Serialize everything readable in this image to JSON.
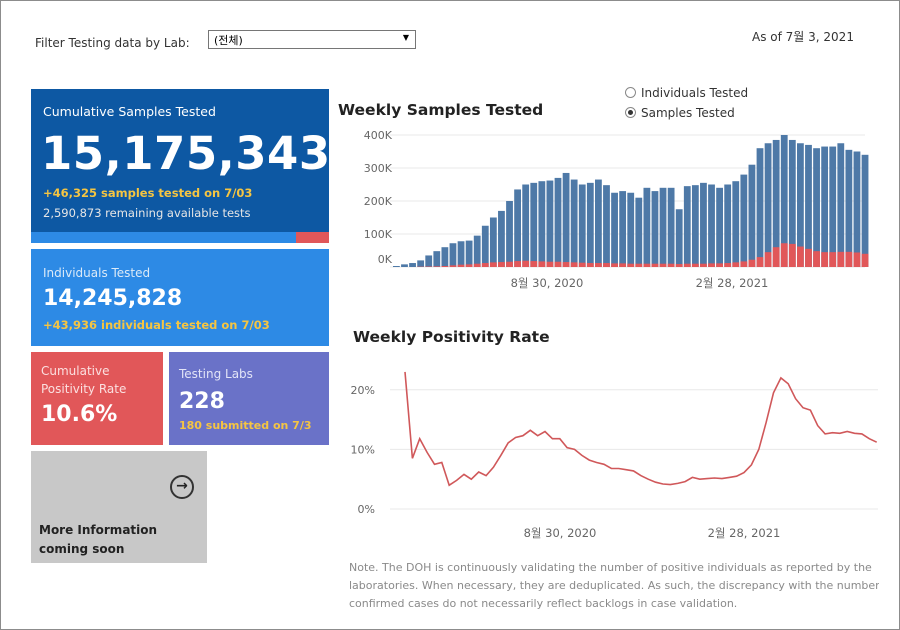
{
  "filter": {
    "label": "Filter Testing data by Lab:",
    "selected": "(전체)",
    "caret": "▼"
  },
  "as_of": "As of 7월 3, 2021",
  "cumulative_samples": {
    "title": "Cumulative Samples Tested",
    "value": "15,175,343",
    "delta": "+46,325 samples tested on 7/03",
    "remaining": "2,590,873 remaining available tests",
    "progress_fraction": 0.89
  },
  "individuals": {
    "title": "Individuals Tested",
    "value": "14,245,828",
    "delta": "+43,936  individuals  tested on 7/03"
  },
  "positivity": {
    "title": "Cumulative Positivity Rate",
    "value": "10.6%"
  },
  "labs": {
    "title": "Testing Labs",
    "value": "228",
    "submitted": "180 submitted on 7/3"
  },
  "more_info": {
    "text": "More Information coming soon",
    "icon": "arrow-circle-right-icon",
    "glyph": "→"
  },
  "radio": {
    "opt1": "Individuals Tested",
    "opt2": "Samples Tested",
    "selected": "Samples Tested"
  },
  "colors": {
    "blue_dark": "#0d58a3",
    "blue": "#2d8ae5",
    "red": "#e15759",
    "purple": "#6a72c8",
    "bar_blue": "#4e79a7"
  },
  "chart_data": [
    {
      "type": "bar",
      "title": "Weekly Samples Tested",
      "x_tick_labels": [
        "8월 30, 2020",
        "2월 28, 2021"
      ],
      "y_tick_labels": [
        "0K",
        "100K",
        "200K",
        "300K",
        "400K"
      ],
      "ylim": [
        0,
        400000
      ],
      "series": [
        {
          "name": "",
          "values": [
            3000,
            8000,
            12000,
            20000,
            35000,
            48000,
            60000,
            72000,
            78000,
            80000,
            95000,
            125000,
            150000,
            170000,
            200000,
            235000,
            250000,
            255000,
            260000,
            262000,
            270000,
            285000,
            265000,
            250000,
            255000,
            265000,
            248000,
            225000,
            230000,
            225000,
            210000,
            240000,
            230000,
            240000,
            240000,
            175000,
            245000,
            248000,
            255000,
            250000,
            240000,
            250000,
            260000,
            280000,
            310000,
            360000,
            375000,
            385000,
            400000,
            385000,
            375000,
            370000,
            360000,
            365000,
            365000,
            375000,
            355000,
            350000,
            340000
          ]
        },
        {
          "name": "",
          "values": [
            0,
            0,
            0,
            1000,
            1500,
            2000,
            3000,
            5000,
            7000,
            8000,
            10000,
            12000,
            14000,
            15000,
            16000,
            18000,
            19000,
            18000,
            17000,
            16000,
            16000,
            15000,
            14000,
            13000,
            12000,
            12000,
            12000,
            11000,
            11000,
            10000,
            10000,
            10000,
            10000,
            10000,
            10000,
            9000,
            10000,
            10000,
            10000,
            11000,
            11000,
            12000,
            14000,
            17000,
            22000,
            30000,
            45000,
            60000,
            72000,
            70000,
            62000,
            55000,
            48000,
            45000,
            45000,
            46000,
            46000,
            44000,
            40000
          ]
        }
      ]
    },
    {
      "type": "line",
      "title": "Weekly Positivity Rate",
      "x_tick_labels": [
        "8월 30, 2020",
        "2월 28, 2021"
      ],
      "y_tick_labels": [
        "0%",
        "10%",
        "20%"
      ],
      "ylim": [
        0,
        25
      ],
      "series": [
        {
          "name": "",
          "values": [
            23,
            8.5,
            11.8,
            9.5,
            7.5,
            7.8,
            4,
            4.8,
            5.8,
            5,
            6.2,
            5.6,
            7,
            9,
            11.1,
            12,
            12.3,
            13.2,
            12.3,
            13,
            11.8,
            11.8,
            10.3,
            10,
            9,
            8.2,
            7.8,
            7.5,
            6.8,
            6.8,
            6.6,
            6.4,
            5.6,
            5,
            4.5,
            4.2,
            4.1,
            4.3,
            4.6,
            5.3,
            5,
            5.1,
            5.2,
            5.1,
            5.3,
            5.5,
            6.1,
            7.4,
            10,
            14.5,
            19.5,
            22,
            21,
            18.5,
            17,
            16.6,
            14,
            12.6,
            12.8,
            12.7,
            13,
            12.7,
            12.6,
            11.8,
            11.2
          ]
        }
      ]
    }
  ],
  "note": {
    "line1": "Note. The DOH is continuously validating the number of positive individuals as reported by the",
    "line2": "laboratories. When necessary, they are deduplicated. As such, the discrepancy with the number of",
    "line3": "confirmed cases do not necessarily reflect backlogs in case validation."
  }
}
